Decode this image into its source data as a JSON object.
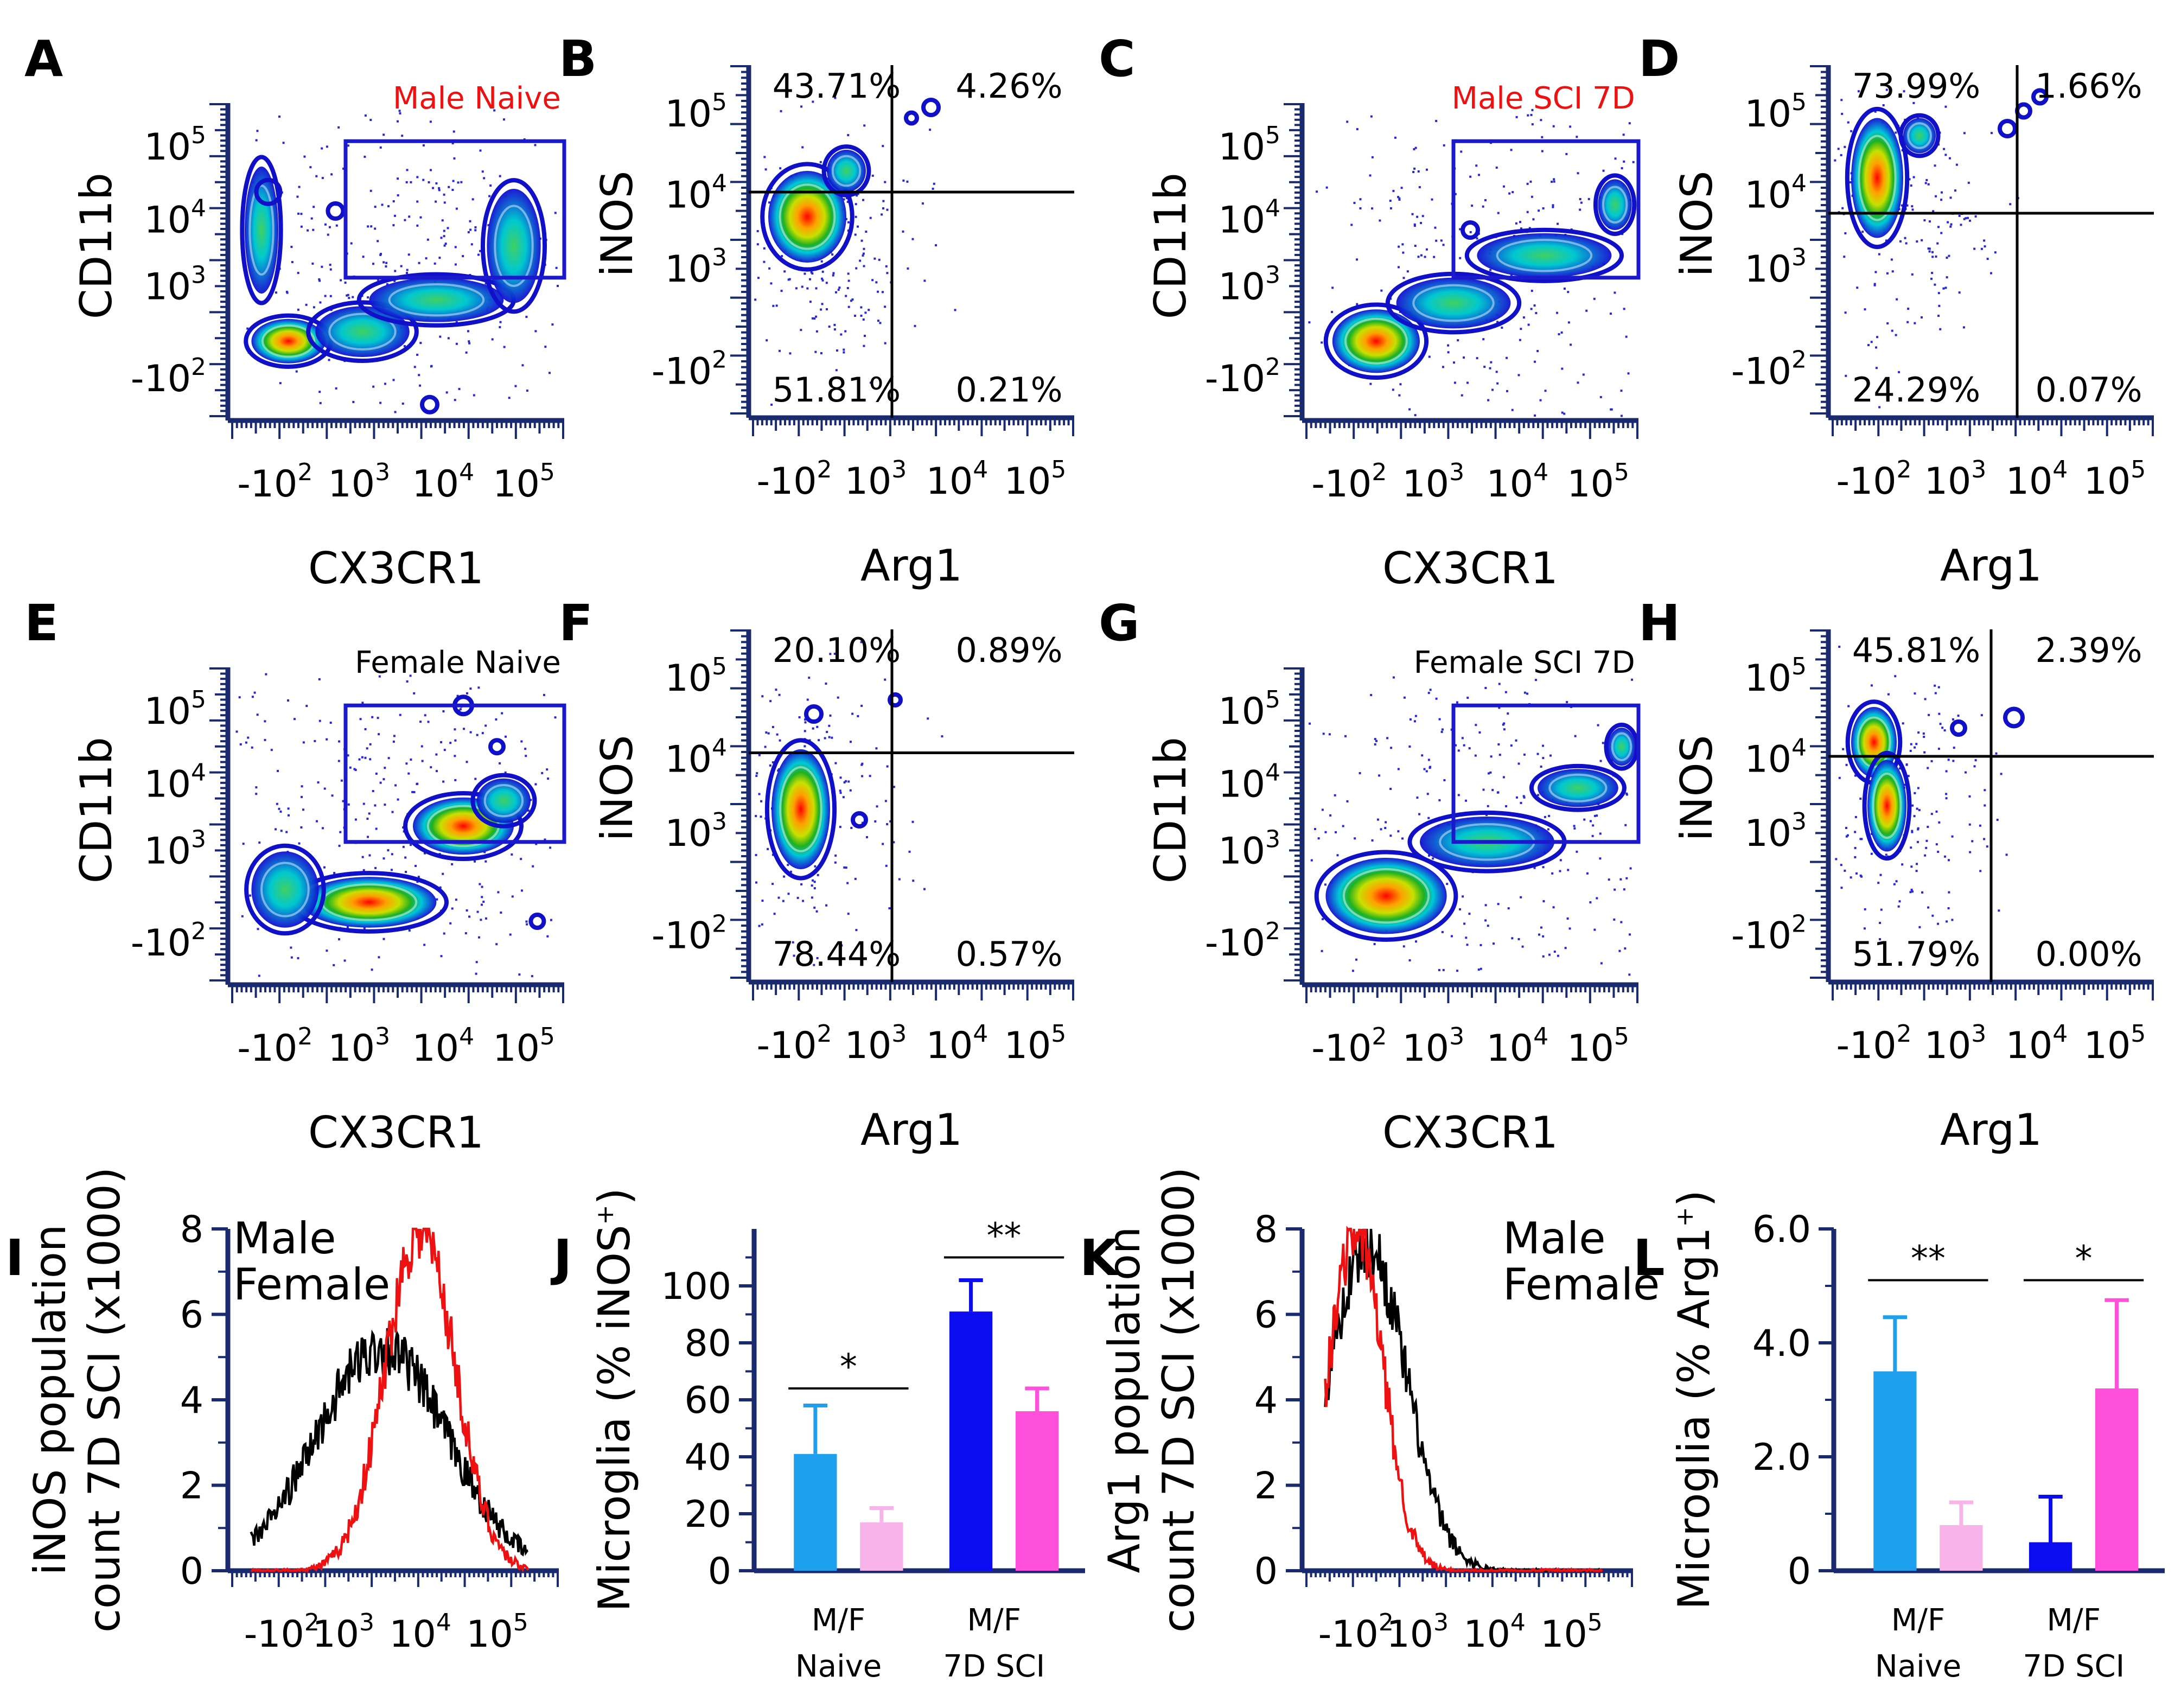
{
  "panels": {
    "A": {
      "letter": "A",
      "title": "Male Naive",
      "xlabel": "CX3CR1",
      "ylabel": "CD11b"
    },
    "B": {
      "letter": "B",
      "xlabel": "Arg1",
      "ylabel": "iNOS",
      "q_tl": "43.71%",
      "q_tr": "4.26%",
      "q_bl": "51.81%",
      "q_br": "0.21%"
    },
    "C": {
      "letter": "C",
      "title": "Male SCI 7D",
      "xlabel": "CX3CR1",
      "ylabel": "CD11b"
    },
    "D": {
      "letter": "D",
      "xlabel": "Arg1",
      "ylabel": "iNOS",
      "q_tl": "73.99%",
      "q_tr": "1.66%",
      "q_bl": "24.29%",
      "q_br": "0.07%"
    },
    "E": {
      "letter": "E",
      "title": "Female Naive",
      "xlabel": "CX3CR1",
      "ylabel": "CD11b"
    },
    "F": {
      "letter": "F",
      "xlabel": "Arg1",
      "ylabel": "iNOS",
      "q_tl": "20.10%",
      "q_tr": "0.89%",
      "q_bl": "78.44%",
      "q_br": "0.57%"
    },
    "G": {
      "letter": "G",
      "title": "Female SCI 7D",
      "xlabel": "CX3CR1",
      "ylabel": "CD11b"
    },
    "H": {
      "letter": "H",
      "xlabel": "Arg1",
      "ylabel": "iNOS",
      "q_tl": "45.81%",
      "q_tr": "2.39%",
      "q_bl": "51.79%",
      "q_br": "0.00%"
    },
    "I": {
      "letter": "I",
      "ylabel1": "iNOS population",
      "ylabel2": "count 7D SCI (x1000)",
      "legend_male": "Male",
      "legend_female": "Female"
    },
    "J": {
      "letter": "J",
      "ylabel": "Microglia (% iNOS",
      "ylabel_sup": "+",
      "ylabel_end": ")",
      "cat1_l1": "M/F",
      "cat1_l2": "Naive",
      "cat2_l1": "M/F",
      "cat2_l2": "7D SCI",
      "sig1": "*",
      "sig2": "**"
    },
    "K": {
      "letter": "K",
      "ylabel1": "Arg1 population",
      "ylabel2": "count 7D SCI (x1000)",
      "legend_male": "Male",
      "legend_female": "Female"
    },
    "L": {
      "letter": "L",
      "ylabel": "Microglia (% Arg1",
      "ylabel_sup": "+",
      "ylabel_end": ")",
      "cat1_l1": "M/F",
      "cat1_l2": "Naive",
      "cat2_l1": "M/F",
      "cat2_l2": "7D SCI",
      "sig1": "**",
      "sig2": "*"
    }
  },
  "log_ticks": {
    "neg": "-10",
    "pos": "10",
    "e2": "2",
    "e3": "3",
    "e4": "4",
    "e5": "5"
  },
  "colors": {
    "male_naive": "#1ea0ee",
    "female_naive": "#f8b4e8",
    "male_sci": "#0c0cf0",
    "female_sci": "#ff50dc",
    "male_line": "#ee1111",
    "female_line": "#000000",
    "gate": "#1a1acc",
    "axis": "#1a2a6e"
  },
  "chart_data": [
    {
      "type": "scatter",
      "panel": "A",
      "title": "Male Naive",
      "xlabel": "CX3CR1",
      "ylabel": "CD11b",
      "gate": "CX3CR1+ CD11b+ (blue rectangle)"
    },
    {
      "type": "scatter",
      "panel": "B",
      "xlabel": "Arg1",
      "ylabel": "iNOS",
      "quadrants": {
        "top_left": 43.71,
        "top_right": 4.26,
        "bottom_left": 51.81,
        "bottom_right": 0.21
      }
    },
    {
      "type": "scatter",
      "panel": "C",
      "title": "Male SCI 7D",
      "xlabel": "CX3CR1",
      "ylabel": "CD11b"
    },
    {
      "type": "scatter",
      "panel": "D",
      "xlabel": "Arg1",
      "ylabel": "iNOS",
      "quadrants": {
        "top_left": 73.99,
        "top_right": 1.66,
        "bottom_left": 24.29,
        "bottom_right": 0.07
      }
    },
    {
      "type": "scatter",
      "panel": "E",
      "title": "Female Naive",
      "xlabel": "CX3CR1",
      "ylabel": "CD11b"
    },
    {
      "type": "scatter",
      "panel": "F",
      "xlabel": "Arg1",
      "ylabel": "iNOS",
      "quadrants": {
        "top_left": 20.1,
        "top_right": 0.89,
        "bottom_left": 78.44,
        "bottom_right": 0.57
      }
    },
    {
      "type": "scatter",
      "panel": "G",
      "title": "Female SCI 7D",
      "xlabel": "CX3CR1",
      "ylabel": "CD11b"
    },
    {
      "type": "scatter",
      "panel": "H",
      "xlabel": "Arg1",
      "ylabel": "iNOS",
      "quadrants": {
        "top_left": 45.81,
        "top_right": 2.39,
        "bottom_left": 51.79,
        "bottom_right": 0.0
      }
    },
    {
      "type": "line",
      "panel": "I",
      "xlabel": "",
      "ylabel": "iNOS population count 7D SCI (x1000)",
      "ylim": [
        0,
        8
      ],
      "yticks": [
        0,
        2,
        4,
        6,
        8
      ],
      "series": [
        {
          "name": "Male",
          "peak_x_log": 4.0,
          "peak_y": 8.0,
          "width": 0.45
        },
        {
          "name": "Female",
          "peak_x_log": 3.5,
          "peak_y": 5.2,
          "width": 0.85
        }
      ]
    },
    {
      "type": "bar",
      "panel": "J",
      "ylabel": "Microglia (% iNOS+)",
      "ylim": [
        0,
        120
      ],
      "yticks": [
        0,
        20,
        40,
        60,
        80,
        100
      ],
      "categories": [
        "Male Naive",
        "Female Naive",
        "Male 7D SCI",
        "Female 7D SCI"
      ],
      "values": [
        41,
        17,
        91,
        56
      ],
      "errors": [
        17,
        5,
        11,
        8
      ],
      "significance": [
        {
          "pair": [
            0,
            1
          ],
          "label": "*"
        },
        {
          "pair": [
            2,
            3
          ],
          "label": "**"
        }
      ]
    },
    {
      "type": "line",
      "panel": "K",
      "xlabel": "",
      "ylabel": "Arg1 population count 7D SCI (x1000)",
      "ylim": [
        0,
        8
      ],
      "yticks": [
        0,
        2,
        4,
        6,
        8
      ],
      "series": [
        {
          "name": "Male",
          "peak_x_log": 2.2,
          "peak_y": 8.0,
          "width": 0.35
        },
        {
          "name": "Female",
          "peak_x_log": 2.35,
          "peak_y": 7.6,
          "width": 0.5
        }
      ]
    },
    {
      "type": "bar",
      "panel": "L",
      "ylabel": "Microglia (% Arg1+)",
      "ylim": [
        0,
        6
      ],
      "yticks": [
        "0",
        "2.0",
        "4.0",
        "6.0"
      ],
      "categories": [
        "Male Naive",
        "Female Naive",
        "Male 7D SCI",
        "Female 7D SCI"
      ],
      "values": [
        3.5,
        0.8,
        0.5,
        3.2
      ],
      "errors": [
        0.95,
        0.4,
        0.8,
        1.55
      ],
      "significance": [
        {
          "pair": [
            0,
            1
          ],
          "label": "**"
        },
        {
          "pair": [
            2,
            3
          ],
          "label": "*"
        }
      ]
    }
  ]
}
